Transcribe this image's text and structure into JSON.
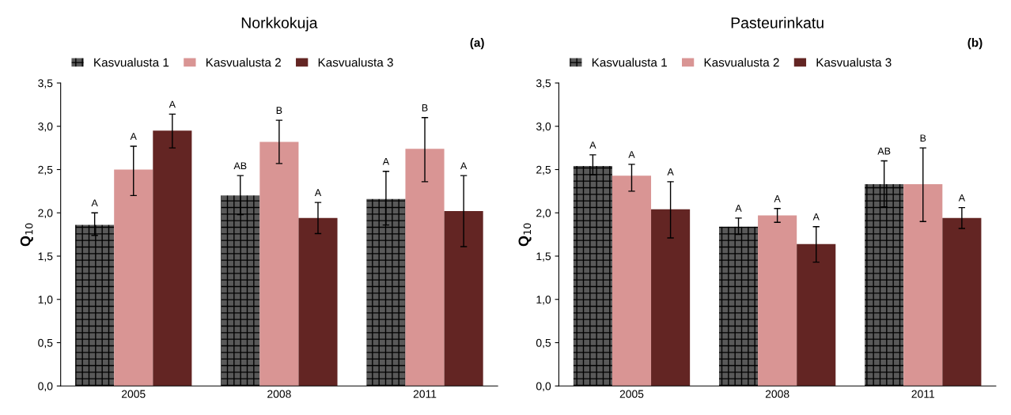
{
  "chart_data": [
    {
      "type": "bar",
      "title": "Norkkokuja",
      "ylabel": "Q$_{10}$",
      "categories": [
        "2005",
        "2008",
        "2011"
      ],
      "series": [
        {
          "name": "Kasvualusta 1",
          "color": "#595959",
          "values": [
            1.86,
            2.2,
            2.16
          ],
          "errors": [
            [
              1.74,
              2.0
            ],
            [
              1.98,
              2.43
            ],
            [
              1.86,
              2.48
            ]
          ]
        },
        {
          "name": "Kasvualusta 2",
          "color": "#d99594",
          "values": [
            2.5,
            2.82,
            2.74
          ],
          "errors": [
            [
              2.2,
              2.77
            ],
            [
              2.57,
              3.07
            ],
            [
              2.36,
              3.1
            ]
          ]
        },
        {
          "name": "Kasvualusta 3",
          "color": "#632523",
          "values": [
            2.95,
            1.94,
            2.02
          ],
          "errors": [
            [
              2.75,
              3.14
            ],
            [
              1.76,
              2.12
            ],
            [
              1.61,
              2.43
            ]
          ]
        }
      ],
      "ylim": [
        0,
        3.5
      ],
      "yticks": [
        {
          "value": 0,
          "label": "0,0"
        },
        {
          "value": 0.5,
          "label": "0,5"
        },
        {
          "value": 1,
          "label": "1,0"
        },
        {
          "value": 1.5,
          "label": "1,5"
        },
        {
          "value": 2,
          "label": "2,0"
        },
        {
          "value": 2.5,
          "label": "2,5"
        },
        {
          "value": 3,
          "label": "3,0"
        },
        {
          "value": 3.5,
          "label": "3,5"
        }
      ],
      "legend": "top",
      "grid": false,
      "annotations": [
        "(a)",
        "A",
        "A",
        "A",
        "AB",
        "B",
        "A",
        "A",
        "B",
        "A"
      ]
    },
    {
      "type": "bar",
      "title": "Pasteurinkatu",
      "ylabel": "Q$_{10}$",
      "categories": [
        "2005",
        "2008",
        "2011"
      ],
      "series": [
        {
          "name": "Kasvualusta 1",
          "color": "#595959",
          "values": [
            2.54,
            1.84,
            2.33
          ],
          "errors": [
            [
              2.44,
              2.67
            ],
            [
              1.75,
              1.94
            ],
            [
              2.07,
              2.6
            ]
          ]
        },
        {
          "name": "Kasvualusta 2",
          "color": "#d99594",
          "values": [
            2.43,
            1.97,
            2.33
          ],
          "errors": [
            [
              2.25,
              2.56
            ],
            [
              1.89,
              2.05
            ],
            [
              1.9,
              2.75
            ]
          ]
        },
        {
          "name": "Kasvualusta 3",
          "color": "#632523",
          "values": [
            2.04,
            1.64,
            1.94
          ],
          "errors": [
            [
              1.71,
              2.36
            ],
            [
              1.43,
              1.84
            ],
            [
              1.82,
              2.06
            ]
          ]
        }
      ],
      "ylim": [
        0,
        3.5
      ],
      "yticks": [
        {
          "value": 0,
          "label": "0,0"
        },
        {
          "value": 0.5,
          "label": "0,5"
        },
        {
          "value": 1,
          "label": "1,0"
        },
        {
          "value": 1.5,
          "label": "1,5"
        },
        {
          "value": 2,
          "label": "2,0"
        },
        {
          "value": 2.5,
          "label": "2,5"
        },
        {
          "value": 3,
          "label": "3,0"
        },
        {
          "value": 3.5,
          "label": "3,5"
        }
      ],
      "legend": "top",
      "grid": false,
      "annotations": [
        "(b)",
        "A",
        "A",
        "A",
        "A",
        "A",
        "A",
        "AB",
        "B",
        "A"
      ]
    }
  ]
}
